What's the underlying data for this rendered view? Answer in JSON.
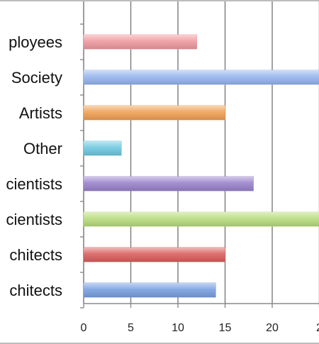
{
  "chart_data": {
    "type": "bar",
    "orientation": "horizontal",
    "categories": [
      "ployees",
      "Society",
      "Artists",
      "Other",
      "cientists",
      "cientists",
      "chitects",
      "chitects"
    ],
    "values": [
      12,
      25,
      15,
      4,
      18,
      25,
      15,
      14
    ],
    "colors": [
      "#ee9aa0",
      "#96b5ee",
      "#f0a055",
      "#6fc8e0",
      "#9a83cc",
      "#b8dc7e",
      "#d9605f",
      "#7aa0e0"
    ],
    "xlim": [
      0,
      25
    ],
    "xticks": [
      "0",
      "5",
      "10",
      "15",
      "20",
      "2"
    ],
    "grid": true,
    "legend": "none"
  }
}
